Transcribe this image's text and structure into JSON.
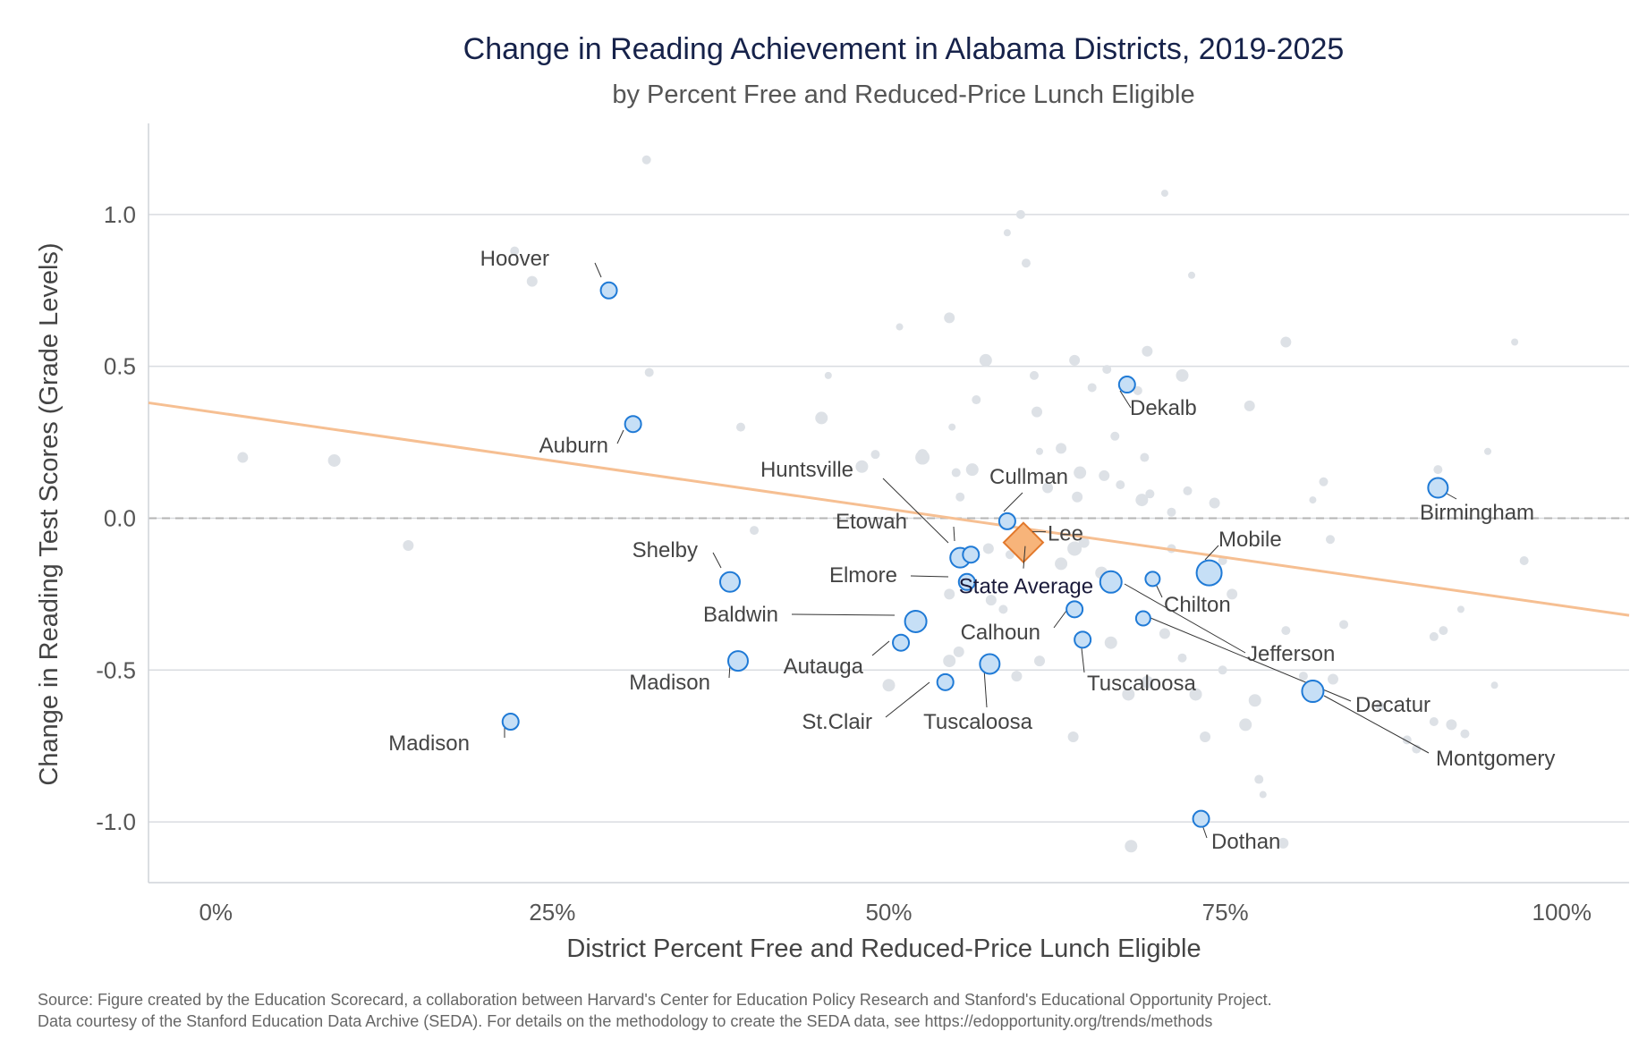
{
  "chart_data": {
    "type": "scatter",
    "title": "Change in Reading Achievement in Alabama Districts, 2019-2025",
    "subtitle": "by Percent Free and Reduced-Price Lunch Eligible",
    "xlabel": "District Percent Free and Reduced-Price Lunch Eligible",
    "ylabel": "Change in Reading Test Scores (Grade Levels)",
    "xlim": [
      -0.05,
      1.05
    ],
    "ylim": [
      -1.2,
      1.3
    ],
    "x_ticks": [
      {
        "value": 0.0,
        "label": "0%"
      },
      {
        "value": 0.25,
        "label": "25%"
      },
      {
        "value": 0.5,
        "label": "50%"
      },
      {
        "value": 0.75,
        "label": "75%"
      },
      {
        "value": 1.0,
        "label": "100%"
      }
    ],
    "y_ticks": [
      {
        "value": 1.0,
        "label": "1.0"
      },
      {
        "value": 0.5,
        "label": "0.5"
      },
      {
        "value": 0.0,
        "label": "0.0"
      },
      {
        "value": -0.5,
        "label": "-0.5"
      },
      {
        "value": -1.0,
        "label": "-1.0"
      }
    ],
    "grid": "horizontal",
    "zero_line": "dashed",
    "trend_line": {
      "x": [
        -0.05,
        1.05
      ],
      "y": [
        0.38,
        -0.32
      ],
      "color": "#f6bf92"
    },
    "colors": {
      "background_points": "#dde1e6",
      "highlight_fill": "#c6dff6",
      "highlight_stroke": "#1f7ad6",
      "state_average_fill": "#f7b47a",
      "state_average_stroke": "#e2782b",
      "grid": "#d9dce0",
      "zero_line": "#b5b5b5",
      "title": "#16224a"
    },
    "background_points": [
      [
        0.222,
        0.88,
        5
      ],
      [
        0.235,
        0.78,
        6
      ],
      [
        0.32,
        1.18,
        5
      ],
      [
        0.322,
        0.48,
        5
      ],
      [
        0.02,
        0.2,
        6
      ],
      [
        0.088,
        0.19,
        7
      ],
      [
        0.143,
        -0.09,
        6
      ],
      [
        0.39,
        0.3,
        5
      ],
      [
        0.4,
        -0.04,
        5
      ],
      [
        0.455,
        0.47,
        4
      ],
      [
        0.45,
        0.33,
        7
      ],
      [
        0.48,
        0.17,
        7
      ],
      [
        0.49,
        0.21,
        5
      ],
      [
        0.508,
        0.63,
        4
      ],
      [
        0.525,
        0.21,
        6
      ],
      [
        0.525,
        0.2,
        8
      ],
      [
        0.545,
        0.66,
        6
      ],
      [
        0.547,
        0.3,
        4
      ],
      [
        0.55,
        0.15,
        5
      ],
      [
        0.562,
        0.16,
        7
      ],
      [
        0.565,
        0.39,
        5
      ],
      [
        0.572,
        0.52,
        7
      ],
      [
        0.588,
        0.94,
        4
      ],
      [
        0.598,
        1.0,
        5
      ],
      [
        0.602,
        0.84,
        5
      ],
      [
        0.608,
        0.47,
        5
      ],
      [
        0.61,
        0.35,
        6
      ],
      [
        0.612,
        0.22,
        4
      ],
      [
        0.618,
        0.1,
        6
      ],
      [
        0.628,
        0.23,
        6
      ],
      [
        0.638,
        0.52,
        6
      ],
      [
        0.64,
        0.07,
        6
      ],
      [
        0.642,
        0.15,
        7
      ],
      [
        0.651,
        0.43,
        5
      ],
      [
        0.66,
        0.14,
        6
      ],
      [
        0.662,
        0.49,
        5
      ],
      [
        0.668,
        0.27,
        5
      ],
      [
        0.672,
        0.11,
        5
      ],
      [
        0.685,
        0.42,
        5
      ],
      [
        0.688,
        0.06,
        7
      ],
      [
        0.69,
        0.2,
        5
      ],
      [
        0.692,
        0.55,
        6
      ],
      [
        0.694,
        0.08,
        5
      ],
      [
        0.705,
        1.07,
        4
      ],
      [
        0.71,
        0.02,
        5
      ],
      [
        0.718,
        0.47,
        7
      ],
      [
        0.722,
        0.09,
        5
      ],
      [
        0.725,
        0.8,
        4
      ],
      [
        0.742,
        0.05,
        6
      ],
      [
        0.748,
        -0.14,
        5
      ],
      [
        0.768,
        0.37,
        6
      ],
      [
        0.795,
        0.58,
        6
      ],
      [
        0.815,
        0.06,
        4
      ],
      [
        0.823,
        0.12,
        5
      ],
      [
        0.828,
        -0.07,
        5
      ],
      [
        0.908,
        0.16,
        5
      ],
      [
        0.945,
        0.22,
        4
      ],
      [
        0.965,
        0.58,
        4
      ],
      [
        0.972,
        -0.14,
        5
      ],
      [
        0.553,
        0.07,
        5
      ],
      [
        0.545,
        -0.25,
        6
      ],
      [
        0.576,
        -0.27,
        6
      ],
      [
        0.585,
        -0.3,
        5
      ],
      [
        0.612,
        -0.47,
        6
      ],
      [
        0.628,
        -0.15,
        7
      ],
      [
        0.638,
        -0.1,
        8
      ],
      [
        0.645,
        -0.08,
        6
      ],
      [
        0.658,
        -0.18,
        7
      ],
      [
        0.665,
        -0.41,
        7
      ],
      [
        0.678,
        -0.58,
        7
      ],
      [
        0.692,
        -0.54,
        7
      ],
      [
        0.705,
        -0.38,
        6
      ],
      [
        0.718,
        -0.46,
        5
      ],
      [
        0.728,
        -0.58,
        7
      ],
      [
        0.735,
        -0.72,
        6
      ],
      [
        0.748,
        -0.5,
        5
      ],
      [
        0.755,
        -0.25,
        6
      ],
      [
        0.765,
        -0.68,
        7
      ],
      [
        0.772,
        -0.6,
        7
      ],
      [
        0.775,
        -0.86,
        5
      ],
      [
        0.778,
        -0.91,
        4
      ],
      [
        0.795,
        -0.37,
        5
      ],
      [
        0.808,
        -0.52,
        5
      ],
      [
        0.83,
        -0.53,
        6
      ],
      [
        0.838,
        -0.35,
        5
      ],
      [
        0.865,
        -0.62,
        5
      ],
      [
        0.885,
        -0.73,
        5
      ],
      [
        0.892,
        -0.76,
        5
      ],
      [
        0.905,
        -0.67,
        5
      ],
      [
        0.912,
        -0.37,
        5
      ],
      [
        0.918,
        -0.68,
        6
      ],
      [
        0.925,
        -0.3,
        4
      ],
      [
        0.928,
        -0.71,
        5
      ],
      [
        0.95,
        -0.55,
        4
      ],
      [
        0.5,
        -0.55,
        7
      ],
      [
        0.545,
        -0.47,
        7
      ],
      [
        0.552,
        -0.44,
        6
      ],
      [
        0.595,
        -0.52,
        6
      ],
      [
        0.637,
        -0.72,
        6
      ],
      [
        0.68,
        -1.08,
        7
      ],
      [
        0.793,
        -1.07,
        6
      ],
      [
        0.59,
        -0.12,
        5
      ],
      [
        0.574,
        -0.1,
        6
      ],
      [
        0.71,
        -0.1,
        5
      ],
      [
        0.905,
        -0.39,
        5
      ]
    ],
    "highlighted_points": [
      {
        "x": 0.292,
        "y": 0.75,
        "r": 9,
        "label": "Hoover"
      },
      {
        "x": 0.31,
        "y": 0.31,
        "r": 9,
        "label": "Auburn"
      },
      {
        "x": 0.382,
        "y": -0.21,
        "r": 11,
        "label": "Shelby"
      },
      {
        "x": 0.388,
        "y": -0.47,
        "r": 11,
        "label": "Madison"
      },
      {
        "x": 0.219,
        "y": -0.67,
        "r": 9,
        "label": "Madison"
      },
      {
        "x": 0.52,
        "y": -0.34,
        "r": 12,
        "label": "Baldwin"
      },
      {
        "x": 0.509,
        "y": -0.41,
        "r": 9,
        "label": "Autauga"
      },
      {
        "x": 0.542,
        "y": -0.54,
        "r": 9,
        "label": "St.Clair"
      },
      {
        "x": 0.575,
        "y": -0.48,
        "r": 11,
        "label": "Tuscaloosa"
      },
      {
        "x": 0.553,
        "y": -0.13,
        "r": 11,
        "label": "Huntsville"
      },
      {
        "x": 0.561,
        "y": -0.12,
        "r": 9,
        "label": "Etowah"
      },
      {
        "x": 0.558,
        "y": -0.21,
        "r": 9,
        "label": "Elmore"
      },
      {
        "x": 0.588,
        "y": -0.01,
        "r": 9,
        "label": "Cullman"
      },
      {
        "x": 0.638,
        "y": -0.3,
        "r": 9,
        "label": "Calhoun"
      },
      {
        "x": 0.644,
        "y": -0.4,
        "r": 9,
        "label": "Tuscaloosa"
      },
      {
        "x": 0.665,
        "y": -0.21,
        "r": 12,
        "label": "Jefferson"
      },
      {
        "x": 0.677,
        "y": 0.44,
        "r": 9,
        "label": "Dekalb"
      },
      {
        "x": 0.696,
        "y": -0.2,
        "r": 8,
        "label": "Chilton"
      },
      {
        "x": 0.689,
        "y": -0.33,
        "r": 8,
        "label": "Decatur"
      },
      {
        "x": 0.738,
        "y": -0.18,
        "r": 14,
        "label": "Mobile"
      },
      {
        "x": 0.732,
        "y": -0.99,
        "r": 9,
        "label": "Dothan"
      },
      {
        "x": 0.815,
        "y": -0.57,
        "r": 12,
        "label": "Montgomery"
      },
      {
        "x": 0.908,
        "y": 0.1,
        "r": 11,
        "label": "Birmingham"
      }
    ],
    "state_average": {
      "x": 0.6,
      "y": -0.08,
      "label": "State Average",
      "sublabel": "Lee"
    },
    "source_lines": [
      "Source: Figure created by the Education Scorecard, a collaboration between Harvard's Center for Education Policy Research and Stanford's Educational Opportunity Project.",
      "Data courtesy of the Stanford Education Data Archive (SEDA). For details on the methodology to create the SEDA data, see https://edopportunity.org/trends/methods"
    ]
  }
}
